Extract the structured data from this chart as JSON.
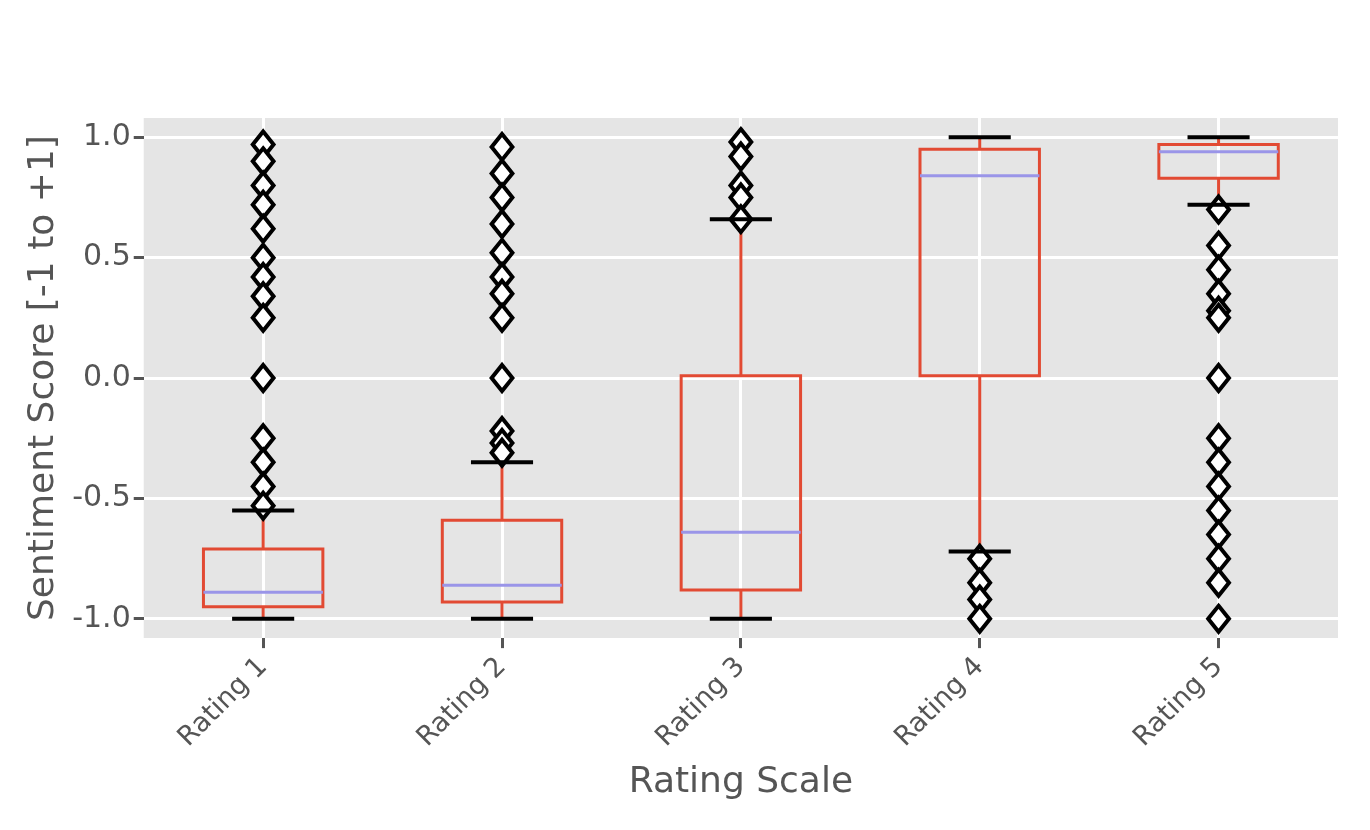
{
  "chart_data": {
    "type": "box",
    "xlabel": "Rating Scale",
    "ylabel": "Sentiment Score [-1 to +1]",
    "categories": [
      "Rating 1",
      "Rating 2",
      "Rating 3",
      "Rating 4",
      "Rating 5"
    ],
    "ylim": [
      -1.08,
      1.08
    ],
    "yticks": [
      {
        "value": -1,
        "label": "-1.0"
      },
      {
        "value": -0.5,
        "label": "-0.5"
      },
      {
        "value": 0,
        "label": "0.0"
      },
      {
        "value": 0.5,
        "label": "0.5"
      },
      {
        "value": 1,
        "label": "1.0"
      }
    ],
    "grid": true,
    "marker": "diamond",
    "series": [
      {
        "color": "#e24a33",
        "boxes": [
          {
            "low": -1.0,
            "q1": -0.95,
            "median": -0.89,
            "q3": -0.71,
            "high": -0.55,
            "outliers": [
              0.97,
              0.9,
              0.8,
              0.72,
              0.62,
              0.5,
              0.42,
              0.34,
              0.25,
              0,
              -0.25,
              -0.35,
              -0.45,
              -0.53
            ]
          },
          {
            "low": -1.0,
            "q1": -0.93,
            "median": -0.86,
            "q3": -0.59,
            "high": -0.35,
            "outliers": [
              0.96,
              0.85,
              0.75,
              0.64,
              0.52,
              0.42,
              0.35,
              0.25,
              0,
              -0.22,
              -0.27,
              -0.31
            ]
          },
          {
            "low": -1.0,
            "q1": -0.88,
            "median": -0.64,
            "q3": 0.01,
            "high": 0.66,
            "outliers": [
              0.98,
              0.92,
              0.8,
              0.75,
              0.66
            ]
          },
          {
            "low": -0.72,
            "q1": 0.01,
            "median": 0.84,
            "q3": 0.95,
            "high": 1.0,
            "outliers": [
              -0.75,
              -0.85,
              -0.92,
              -1.0
            ]
          },
          {
            "low": 0.72,
            "q1": 0.83,
            "median": 0.94,
            "q3": 0.97,
            "high": 1.0,
            "outliers": [
              0.7,
              0.55,
              0.45,
              0.35,
              0.28,
              0.25,
              0,
              -0.25,
              -0.35,
              -0.45,
              -0.55,
              -0.65,
              -0.75,
              -0.85,
              -1.0
            ]
          }
        ]
      }
    ]
  }
}
